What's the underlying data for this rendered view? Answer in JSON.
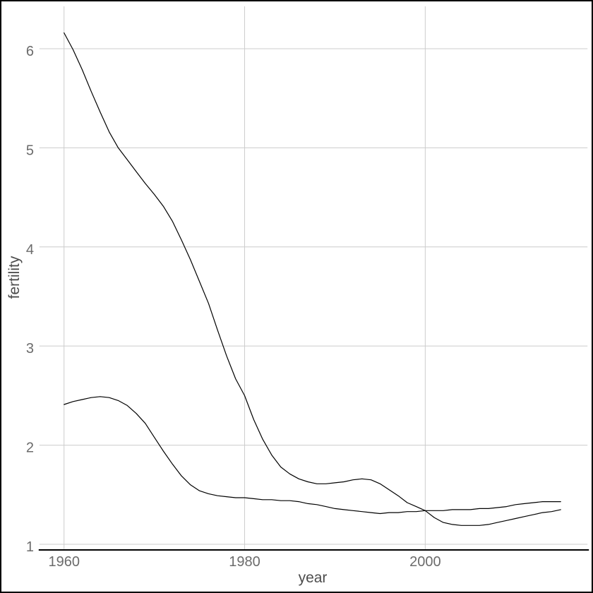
{
  "figure": {
    "x_axis_title": "year",
    "y_axis_title": "fertility"
  },
  "chart_data": {
    "type": "line",
    "title": "",
    "xlabel": "year",
    "ylabel": "fertility",
    "legend": false,
    "grid": true,
    "x_ticks": [
      1960,
      1980,
      2000
    ],
    "y_ticks": [
      1,
      2,
      3,
      4,
      5,
      6
    ],
    "xlim": [
      1957.27,
      2017.97
    ],
    "ylim": [
      0.943,
      6.427
    ],
    "colors": {
      "line": "#000000",
      "gridline": "#cccccc",
      "axis_line": "#000000",
      "tick_label": "#6b6b6b",
      "axis_title": "#4d4d4d",
      "background": "#ffffff"
    },
    "series": [
      {
        "name": "line-upper",
        "points": [
          [
            1960,
            6.16
          ],
          [
            1961,
            5.99
          ],
          [
            1962,
            5.79
          ],
          [
            1963,
            5.57
          ],
          [
            1964,
            5.36
          ],
          [
            1965,
            5.16
          ],
          [
            1966,
            5.0
          ],
          [
            1967,
            4.88
          ],
          [
            1968,
            4.76
          ],
          [
            1969,
            4.64
          ],
          [
            1970,
            4.53
          ],
          [
            1971,
            4.41
          ],
          [
            1972,
            4.26
          ],
          [
            1973,
            4.07
          ],
          [
            1974,
            3.87
          ],
          [
            1975,
            3.65
          ],
          [
            1976,
            3.43
          ],
          [
            1977,
            3.16
          ],
          [
            1978,
            2.9
          ],
          [
            1979,
            2.67
          ],
          [
            1980,
            2.5
          ],
          [
            1981,
            2.26
          ],
          [
            1982,
            2.06
          ],
          [
            1983,
            1.9
          ],
          [
            1984,
            1.78
          ],
          [
            1985,
            1.71
          ],
          [
            1986,
            1.66
          ],
          [
            1987,
            1.63
          ],
          [
            1988,
            1.61
          ],
          [
            1989,
            1.61
          ],
          [
            1990,
            1.62
          ],
          [
            1991,
            1.63
          ],
          [
            1992,
            1.65
          ],
          [
            1993,
            1.66
          ],
          [
            1994,
            1.65
          ],
          [
            1995,
            1.61
          ],
          [
            1996,
            1.55
          ],
          [
            1997,
            1.49
          ],
          [
            1998,
            1.42
          ],
          [
            1999,
            1.38
          ],
          [
            2000,
            1.34
          ],
          [
            2001,
            1.27
          ],
          [
            2002,
            1.22
          ],
          [
            2003,
            1.2
          ],
          [
            2004,
            1.19
          ],
          [
            2005,
            1.19
          ],
          [
            2006,
            1.19
          ],
          [
            2007,
            1.2
          ],
          [
            2008,
            1.22
          ],
          [
            2009,
            1.24
          ],
          [
            2010,
            1.26
          ],
          [
            2011,
            1.28
          ],
          [
            2012,
            1.3
          ],
          [
            2013,
            1.32
          ],
          [
            2014,
            1.33
          ],
          [
            2015,
            1.35
          ]
        ]
      },
      {
        "name": "line-lower",
        "points": [
          [
            1960,
            2.41
          ],
          [
            1961,
            2.44
          ],
          [
            1962,
            2.46
          ],
          [
            1963,
            2.48
          ],
          [
            1964,
            2.49
          ],
          [
            1965,
            2.48
          ],
          [
            1966,
            2.45
          ],
          [
            1967,
            2.4
          ],
          [
            1968,
            2.32
          ],
          [
            1969,
            2.22
          ],
          [
            1970,
            2.08
          ],
          [
            1971,
            1.94
          ],
          [
            1972,
            1.81
          ],
          [
            1973,
            1.69
          ],
          [
            1974,
            1.6
          ],
          [
            1975,
            1.54
          ],
          [
            1976,
            1.51
          ],
          [
            1977,
            1.49
          ],
          [
            1978,
            1.48
          ],
          [
            1979,
            1.47
          ],
          [
            1980,
            1.47
          ],
          [
            1981,
            1.46
          ],
          [
            1982,
            1.45
          ],
          [
            1983,
            1.45
          ],
          [
            1984,
            1.44
          ],
          [
            1985,
            1.44
          ],
          [
            1986,
            1.43
          ],
          [
            1987,
            1.41
          ],
          [
            1988,
            1.4
          ],
          [
            1989,
            1.38
          ],
          [
            1990,
            1.36
          ],
          [
            1991,
            1.35
          ],
          [
            1992,
            1.34
          ],
          [
            1993,
            1.33
          ],
          [
            1994,
            1.32
          ],
          [
            1995,
            1.31
          ],
          [
            1996,
            1.32
          ],
          [
            1997,
            1.32
          ],
          [
            1998,
            1.33
          ],
          [
            1999,
            1.33
          ],
          [
            2000,
            1.34
          ],
          [
            2001,
            1.34
          ],
          [
            2002,
            1.34
          ],
          [
            2003,
            1.35
          ],
          [
            2004,
            1.35
          ],
          [
            2005,
            1.35
          ],
          [
            2006,
            1.36
          ],
          [
            2007,
            1.36
          ],
          [
            2008,
            1.37
          ],
          [
            2009,
            1.38
          ],
          [
            2010,
            1.4
          ],
          [
            2011,
            1.41
          ],
          [
            2012,
            1.42
          ],
          [
            2013,
            1.43
          ],
          [
            2014,
            1.43
          ],
          [
            2015,
            1.43
          ]
        ]
      }
    ]
  }
}
